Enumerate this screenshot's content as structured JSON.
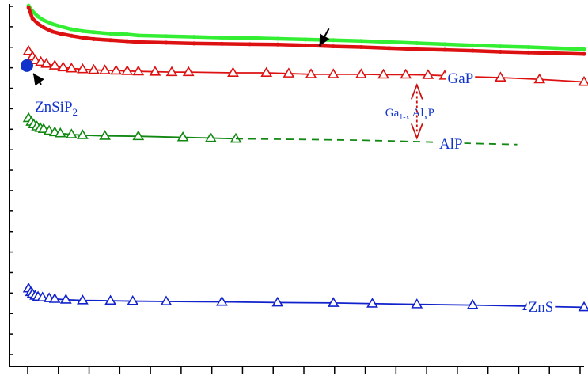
{
  "chart_data": {
    "type": "line",
    "xlabel": "",
    "ylabel": "",
    "grid": false,
    "axes": {
      "x": {
        "range": [
          0,
          1
        ],
        "tick_labels": false
      },
      "y": {
        "range": [
          0,
          1
        ],
        "tick_labels": false
      }
    },
    "series": [
      {
        "key": "green",
        "color": "#33ee33",
        "marker": "dot",
        "style": "thick",
        "points": [
          [
            0.003,
            0.995
          ],
          [
            0.01,
            0.98
          ],
          [
            0.02,
            0.965
          ],
          [
            0.03,
            0.955
          ],
          [
            0.045,
            0.945
          ],
          [
            0.06,
            0.938
          ],
          [
            0.08,
            0.93
          ],
          [
            0.1,
            0.925
          ],
          [
            0.12,
            0.922
          ],
          [
            0.15,
            0.918
          ],
          [
            0.18,
            0.916
          ],
          [
            0.2,
            0.913
          ],
          [
            0.25,
            0.911
          ],
          [
            0.3,
            0.909
          ],
          [
            0.35,
            0.907
          ],
          [
            0.4,
            0.906
          ],
          [
            0.45,
            0.904
          ],
          [
            0.5,
            0.902
          ],
          [
            0.55,
            0.9
          ],
          [
            0.6,
            0.898
          ],
          [
            0.65,
            0.895
          ],
          [
            0.7,
            0.892
          ],
          [
            0.75,
            0.889
          ],
          [
            0.8,
            0.886
          ],
          [
            0.85,
            0.883
          ],
          [
            0.9,
            0.881
          ],
          [
            0.95,
            0.878
          ],
          [
            1.0,
            0.875
          ]
        ]
      },
      {
        "key": "red-thick",
        "color": "#dd1111",
        "marker": "dot",
        "style": "thick",
        "points": [
          [
            0.003,
            0.99
          ],
          [
            0.01,
            0.96
          ],
          [
            0.02,
            0.945
          ],
          [
            0.03,
            0.935
          ],
          [
            0.045,
            0.924
          ],
          [
            0.06,
            0.918
          ],
          [
            0.08,
            0.912
          ],
          [
            0.1,
            0.907
          ],
          [
            0.12,
            0.903
          ],
          [
            0.15,
            0.9
          ],
          [
            0.18,
            0.897
          ],
          [
            0.2,
            0.895
          ],
          [
            0.25,
            0.893
          ],
          [
            0.3,
            0.891
          ],
          [
            0.35,
            0.89
          ],
          [
            0.4,
            0.889
          ],
          [
            0.45,
            0.888
          ],
          [
            0.5,
            0.886
          ],
          [
            0.55,
            0.883
          ],
          [
            0.6,
            0.881
          ],
          [
            0.65,
            0.878
          ],
          [
            0.7,
            0.875
          ],
          [
            0.75,
            0.873
          ],
          [
            0.8,
            0.871
          ],
          [
            0.85,
            0.868
          ],
          [
            0.9,
            0.866
          ],
          [
            0.95,
            0.864
          ],
          [
            1.0,
            0.862
          ]
        ]
      },
      {
        "key": "GaP",
        "label": "GaP",
        "color": "#dd1111",
        "marker": "triangle",
        "style": "thin",
        "points": [
          [
            0.003,
            0.87
          ],
          [
            0.01,
            0.855
          ],
          [
            0.015,
            0.845
          ],
          [
            0.025,
            0.84
          ],
          [
            0.035,
            0.835
          ],
          [
            0.05,
            0.83
          ],
          [
            0.065,
            0.825
          ],
          [
            0.08,
            0.822
          ],
          [
            0.1,
            0.82
          ],
          [
            0.12,
            0.818
          ],
          [
            0.14,
            0.817
          ],
          [
            0.16,
            0.816
          ],
          [
            0.18,
            0.815
          ],
          [
            0.2,
            0.814
          ],
          [
            0.23,
            0.813
          ],
          [
            0.26,
            0.812
          ],
          [
            0.29,
            0.812
          ],
          [
            0.37,
            0.81
          ],
          [
            0.43,
            0.81
          ],
          [
            0.47,
            0.808
          ],
          [
            0.51,
            0.806
          ],
          [
            0.55,
            0.806
          ],
          [
            0.6,
            0.806
          ],
          [
            0.64,
            0.805
          ],
          [
            0.68,
            0.805
          ],
          [
            0.72,
            0.804
          ],
          [
            0.75,
            0.802
          ],
          [
            0.78,
            0.8
          ],
          [
            0.85,
            0.797
          ],
          [
            0.92,
            0.792
          ],
          [
            1.0,
            0.785
          ]
        ]
      },
      {
        "key": "AlP",
        "label": "AlP",
        "color": "#118811",
        "marker": "triangle",
        "style": "thin",
        "points": [
          [
            0.003,
            0.685
          ],
          [
            0.008,
            0.675
          ],
          [
            0.012,
            0.668
          ],
          [
            0.018,
            0.662
          ],
          [
            0.024,
            0.658
          ],
          [
            0.03,
            0.655
          ],
          [
            0.04,
            0.65
          ],
          [
            0.05,
            0.646
          ],
          [
            0.06,
            0.643
          ],
          [
            0.08,
            0.64
          ],
          [
            0.1,
            0.638
          ],
          [
            0.14,
            0.636
          ],
          [
            0.2,
            0.635
          ],
          [
            0.28,
            0.632
          ],
          [
            0.33,
            0.63
          ],
          [
            0.375,
            0.628
          ]
        ]
      },
      {
        "key": "AlP-extrapolated",
        "color": "#118811",
        "marker": "none",
        "style": "dashed",
        "points": [
          [
            0.375,
            0.628
          ],
          [
            0.5,
            0.626
          ],
          [
            0.6,
            0.624
          ],
          [
            0.7,
            0.62
          ],
          [
            0.8,
            0.615
          ],
          [
            0.88,
            0.612
          ]
        ]
      },
      {
        "key": "ZnS",
        "label": "ZnS",
        "color": "#1122cc",
        "marker": "triangle",
        "style": "thin",
        "points": [
          [
            0.003,
            0.215
          ],
          [
            0.007,
            0.205
          ],
          [
            0.01,
            0.2
          ],
          [
            0.015,
            0.195
          ],
          [
            0.02,
            0.192
          ],
          [
            0.028,
            0.19
          ],
          [
            0.04,
            0.188
          ],
          [
            0.05,
            0.186
          ],
          [
            0.07,
            0.184
          ],
          [
            0.1,
            0.182
          ],
          [
            0.15,
            0.181
          ],
          [
            0.19,
            0.18
          ],
          [
            0.25,
            0.179
          ],
          [
            0.35,
            0.178
          ],
          [
            0.45,
            0.176
          ],
          [
            0.55,
            0.175
          ],
          [
            0.62,
            0.173
          ],
          [
            0.7,
            0.171
          ],
          [
            0.8,
            0.169
          ],
          [
            0.9,
            0.166
          ],
          [
            1.0,
            0.163
          ]
        ]
      }
    ],
    "points_isolated": [
      {
        "label": "ZnSiP2",
        "label_main": "ZnSiP",
        "label_sub": "2",
        "color": "#1133cc",
        "x": 0.0,
        "y": 0.83
      }
    ],
    "annotations": {
      "arrow_down": {
        "x": 0.525,
        "y": 0.91,
        "color": "#000000"
      },
      "arrow_znsip2": {
        "x": 0.0,
        "y": 0.83,
        "color": "#000000"
      },
      "alloy_label": {
        "a": "Ga",
        "b": "1-x",
        "c": " Al",
        "d": "x",
        "e": "P",
        "color": "#1133cc"
      },
      "alloy_span": {
        "x": 0.7,
        "y_top": 0.785,
        "y_bottom": 0.626,
        "color": "#cc1111"
      }
    },
    "ticks": {
      "x_count": 19,
      "y_count": 18
    }
  }
}
